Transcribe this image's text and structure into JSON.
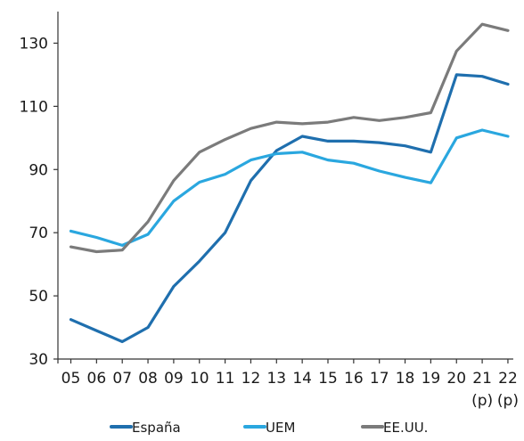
{
  "chart_data": {
    "type": "line",
    "x_labels": [
      "05",
      "06",
      "07",
      "08",
      "09",
      "10",
      "11",
      "12",
      "13",
      "14",
      "15",
      "16",
      "17",
      "18",
      "19",
      "20",
      "21",
      "22"
    ],
    "x_sublabels": {
      "21": "(p)",
      "22": "(p)"
    },
    "ylim": [
      30,
      140
    ],
    "yticks": [
      30,
      50,
      70,
      90,
      110,
      130
    ],
    "grid": false,
    "legend_position": "bottom",
    "series": [
      {
        "name": "España",
        "color": "#1f6fae",
        "values": [
          42.5,
          39,
          35.5,
          40,
          53,
          61,
          70,
          86.5,
          96,
          100.5,
          99,
          99,
          98.5,
          97.5,
          95.5,
          120,
          119.5,
          117
        ]
      },
      {
        "name": "UEM",
        "color": "#2aa7df",
        "values": [
          70.5,
          68.5,
          66,
          69.5,
          80,
          86,
          88.5,
          93,
          95,
          95.5,
          93,
          92,
          89.5,
          87.5,
          85.8,
          100,
          102.5,
          100.5
        ]
      },
      {
        "name": "EE.UU.",
        "color": "#7b7b7b",
        "values": [
          65.5,
          64,
          64.5,
          73.5,
          86.5,
          95.5,
          99.5,
          103,
          105,
          104.5,
          105,
          106.5,
          105.5,
          106.5,
          108,
          127.5,
          136,
          134
        ]
      }
    ]
  }
}
